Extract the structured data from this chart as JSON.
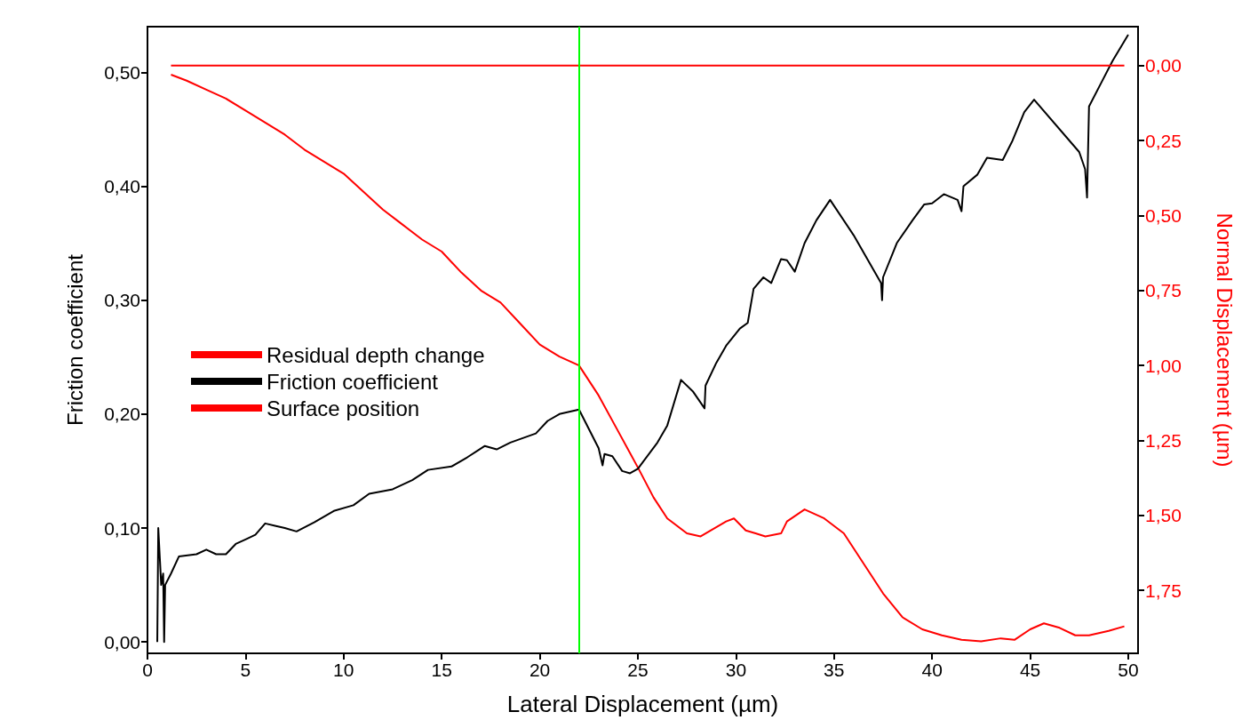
{
  "chart_data": {
    "type": "line",
    "xlabel": "Lateral Displacement (µm)",
    "ylabel": "Friction coefficient",
    "y2label": "Normal Displacement (µm)",
    "xlim": [
      0,
      50.5
    ],
    "xticks": [
      0,
      5,
      10,
      15,
      20,
      25,
      30,
      35,
      40,
      45,
      50
    ],
    "ylim": [
      -0.01,
      0.54
    ],
    "yticks": [
      {
        "value": 0,
        "label": "0,00"
      },
      {
        "value": 0.1,
        "label": "0,10"
      },
      {
        "value": 0.2,
        "label": "0,20"
      },
      {
        "value": 0.3,
        "label": "0,30"
      },
      {
        "value": 0.4,
        "label": "0,40"
      },
      {
        "value": 0.5,
        "label": "0,50"
      }
    ],
    "y2lim": [
      1.96,
      -0.13
    ],
    "y2ticks": [
      {
        "value": 0,
        "label": "0,00"
      },
      {
        "value": 0.25,
        "label": "0,25"
      },
      {
        "value": 0.5,
        "label": "0,50"
      },
      {
        "value": 0.75,
        "label": "0,75"
      },
      {
        "value": 1,
        "label": "1,00"
      },
      {
        "value": 1.25,
        "label": "1,25"
      },
      {
        "value": 1.5,
        "label": "1,50"
      },
      {
        "value": 1.75,
        "label": "1,75"
      }
    ],
    "grid": false,
    "legend": "left",
    "marker": "none",
    "line_style": "solid",
    "ref_lines": [
      {
        "axis": "x",
        "value": 22,
        "color": "#00ff00"
      }
    ],
    "series": [
      {
        "name": "Residual depth change",
        "color": "#ff0000",
        "axis": "y2",
        "x": [
          1.2,
          2,
          3,
          4,
          5,
          6,
          7,
          8,
          9,
          10,
          11,
          12,
          13,
          14,
          15,
          16,
          17,
          18,
          19,
          20,
          21,
          22,
          23,
          24,
          25,
          25.8,
          26.5,
          27.5,
          28.2,
          29.5,
          29.9,
          30.5,
          31,
          31.5,
          32.3,
          32.6,
          33.5,
          34.5,
          35.5,
          36.5,
          37.5,
          38.5,
          39.5,
          40.5,
          41.5,
          42.5,
          43.5,
          44.2,
          45,
          45.7,
          46.5,
          47.3,
          48,
          49,
          49.8
        ],
        "values": [
          0.03,
          0.05,
          0.08,
          0.11,
          0.15,
          0.19,
          0.23,
          0.28,
          0.32,
          0.36,
          0.42,
          0.48,
          0.53,
          0.58,
          0.62,
          0.69,
          0.75,
          0.79,
          0.86,
          0.93,
          0.97,
          1.0,
          1.1,
          1.22,
          1.34,
          1.44,
          1.51,
          1.56,
          1.57,
          1.52,
          1.51,
          1.55,
          1.56,
          1.57,
          1.56,
          1.52,
          1.48,
          1.51,
          1.56,
          1.66,
          1.76,
          1.84,
          1.88,
          1.9,
          1.915,
          1.92,
          1.91,
          1.915,
          1.88,
          1.86,
          1.875,
          1.9,
          1.9,
          1.885,
          1.87
        ]
      },
      {
        "name": "Friction coefficient",
        "color": "#000000",
        "x": [
          0.5,
          0.55,
          0.7,
          0.8,
          0.85,
          0.9,
          1.2,
          1.6,
          2.5,
          3,
          3.5,
          4,
          4.5,
          5,
          5.5,
          6,
          6.5,
          7,
          7.6,
          8.5,
          9.5,
          10.5,
          11.3,
          12.5,
          13.5,
          14.3,
          15.5,
          16.3,
          17.2,
          17.8,
          18.5,
          19.8,
          20.4,
          21,
          22,
          23,
          23.2,
          23.3,
          23.7,
          24.2,
          24.6,
          25,
          26,
          26.5,
          27.2,
          27.8,
          28.4,
          28.45,
          29,
          29.5,
          30.2,
          30.6,
          30.9,
          31.4,
          31.8,
          32.3,
          32.6,
          33,
          33.5,
          34.1,
          34.8,
          36,
          37.4,
          37.45,
          37.5,
          38.2,
          39,
          39.6,
          40,
          40.6,
          41.3,
          41.5,
          41.6,
          42.3,
          42.8,
          43.6,
          44.1,
          44.7,
          45.2,
          47.5,
          47.8,
          47.9,
          48,
          48.6,
          49.2,
          50
        ],
        "values": [
          0,
          0.1,
          0.05,
          0.06,
          0,
          0.05,
          0.06,
          0.075,
          0.077,
          0.081,
          0.077,
          0.077,
          0.086,
          0.09,
          0.094,
          0.104,
          0.102,
          0.1,
          0.097,
          0.105,
          0.115,
          0.12,
          0.13,
          0.134,
          0.142,
          0.151,
          0.154,
          0.162,
          0.172,
          0.169,
          0.175,
          0.183,
          0.194,
          0.2,
          0.204,
          0.17,
          0.155,
          0.165,
          0.163,
          0.15,
          0.148,
          0.152,
          0.175,
          0.19,
          0.23,
          0.22,
          0.205,
          0.225,
          0.245,
          0.26,
          0.275,
          0.28,
          0.31,
          0.32,
          0.315,
          0.336,
          0.335,
          0.325,
          0.35,
          0.37,
          0.388,
          0.357,
          0.315,
          0.3,
          0.32,
          0.35,
          0.37,
          0.384,
          0.385,
          0.393,
          0.388,
          0.378,
          0.4,
          0.41,
          0.425,
          0.423,
          0.44,
          0.465,
          0.476,
          0.43,
          0.415,
          0.39,
          0.47,
          0.49,
          0.51,
          0.533
        ]
      },
      {
        "name": "Surface position",
        "color": "#ff0000",
        "axis": "y2",
        "x": [
          1.2,
          49.8
        ],
        "values": [
          0,
          0
        ]
      }
    ]
  }
}
